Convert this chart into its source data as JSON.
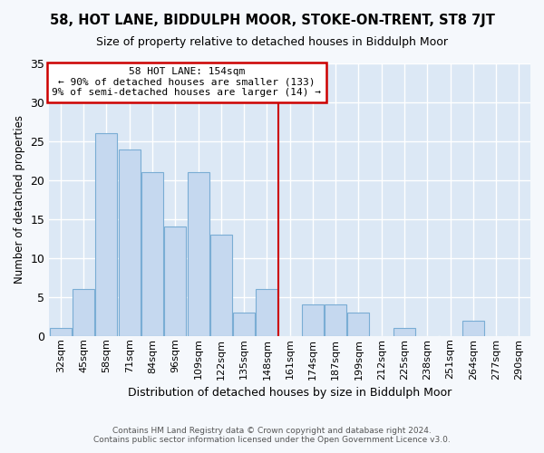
{
  "title": "58, HOT LANE, BIDDULPH MOOR, STOKE-ON-TRENT, ST8 7JT",
  "subtitle": "Size of property relative to detached houses in Biddulph Moor",
  "xlabel": "Distribution of detached houses by size in Biddulph Moor",
  "ylabel": "Number of detached properties",
  "categories": [
    "32sqm",
    "45sqm",
    "58sqm",
    "71sqm",
    "84sqm",
    "96sqm",
    "109sqm",
    "122sqm",
    "135sqm",
    "148sqm",
    "161sqm",
    "174sqm",
    "187sqm",
    "199sqm",
    "212sqm",
    "225sqm",
    "238sqm",
    "251sqm",
    "264sqm",
    "277sqm",
    "290sqm"
  ],
  "values": [
    1,
    6,
    26,
    24,
    21,
    14,
    21,
    13,
    3,
    6,
    0,
    4,
    4,
    3,
    0,
    1,
    0,
    0,
    2,
    0,
    0
  ],
  "bar_color": "#c5d8ef",
  "bar_edge_color": "#7aadd4",
  "vline_x": 9.5,
  "vline_color": "#cc0000",
  "annotation_line1": "58 HOT LANE: 154sqm",
  "annotation_line2": "← 90% of detached houses are smaller (133)",
  "annotation_line3": "9% of semi-detached houses are larger (14) →",
  "annotation_box_edgecolor": "#cc0000",
  "ylim": [
    0,
    35
  ],
  "yticks": [
    0,
    5,
    10,
    15,
    20,
    25,
    30,
    35
  ],
  "bg_color": "#dce8f5",
  "fig_bg_color": "#f5f8fc",
  "footer1": "Contains HM Land Registry data © Crown copyright and database right 2024.",
  "footer2": "Contains public sector information licensed under the Open Government Licence v3.0."
}
